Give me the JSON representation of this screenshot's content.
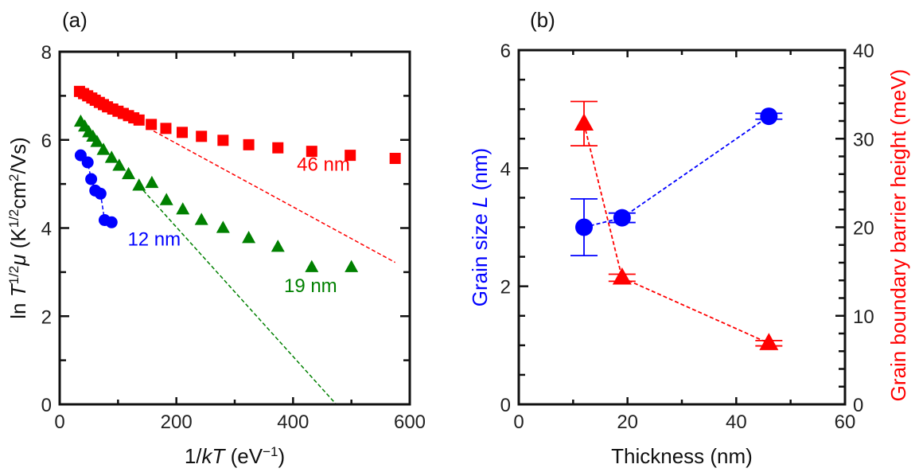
{
  "chart_data": [
    {
      "panel_label": "(a)",
      "type": "scatter",
      "xlabel_parts": [
        {
          "t": "1/"
        },
        {
          "t": "kT",
          "i": true
        },
        {
          "t": " (eV"
        },
        {
          "t": "−1",
          "sup": true
        },
        {
          "t": ")"
        }
      ],
      "ylabel_parts": [
        {
          "t": "ln "
        },
        {
          "t": "T",
          "i": true
        },
        {
          "t": "1/2",
          "sup": true
        },
        {
          "t": "μ",
          "i": true
        },
        {
          "t": " (K"
        },
        {
          "t": "1/2",
          "sup": true
        },
        {
          "t": "cm"
        },
        {
          "t": "2",
          "sup": true
        },
        {
          "t": "/Vs)"
        }
      ],
      "xlim": [
        0,
        600
      ],
      "ylim": [
        0,
        8
      ],
      "xticks": [
        0,
        200,
        400,
        600
      ],
      "yticks": [
        0,
        2,
        4,
        6,
        8
      ],
      "x_minor_step": 100,
      "y_minor_step": 1,
      "grid": false,
      "series": [
        {
          "label": "46 nm",
          "color": "#ff0000",
          "marker": "square",
          "x": [
            34,
            41,
            48,
            55,
            61,
            68,
            75,
            82,
            91,
            100,
            109,
            118,
            127,
            136,
            157,
            182,
            210,
            243,
            280,
            324,
            374,
            432,
            498,
            575
          ],
          "y": [
            7.1,
            7.05,
            7.0,
            6.95,
            6.9,
            6.85,
            6.8,
            6.75,
            6.7,
            6.65,
            6.6,
            6.55,
            6.5,
            6.45,
            6.35,
            6.26,
            6.17,
            6.08,
            5.99,
            5.89,
            5.82,
            5.74,
            5.65,
            5.58
          ],
          "fit": {
            "x": [
              161,
              575
            ],
            "y": [
              6.2,
              3.22
            ]
          },
          "label_at": [
            452,
            5.3
          ]
        },
        {
          "label": "19 nm",
          "color": "#008000",
          "marker": "triangle",
          "x": [
            36,
            43,
            50,
            57,
            64,
            75,
            89,
            102,
            118,
            136,
            158,
            183,
            211,
            243,
            280,
            324,
            374,
            432,
            500
          ],
          "y": [
            6.41,
            6.3,
            6.17,
            6.07,
            5.95,
            5.77,
            5.59,
            5.41,
            5.22,
            4.96,
            5.02,
            4.63,
            4.42,
            4.18,
            4.0,
            3.77,
            3.57,
            3.11,
            3.11
          ],
          "fit": {
            "x": [
              136,
              474
            ],
            "y": [
              4.96,
              0
            ]
          },
          "label_at": [
            430,
            2.55
          ]
        },
        {
          "label": "12 nm",
          "color": "#0000ff",
          "marker": "circle",
          "x": [
            36,
            48,
            54,
            61,
            70,
            77,
            89
          ],
          "y": [
            5.65,
            5.49,
            5.11,
            4.85,
            4.78,
            4.18,
            4.13
          ],
          "connect": true,
          "label_at": [
            162,
            3.6
          ]
        }
      ]
    },
    {
      "panel_label": "(b)",
      "type": "scatter",
      "xlabel": "Thickness (nm)",
      "ylabel_left_parts": [
        {
          "t": "Grain size "
        },
        {
          "t": "L",
          "i": true
        },
        {
          "t": " (nm)"
        }
      ],
      "ylabel_right": "Grain boundary barrier height (meV)",
      "xlim": [
        0,
        60
      ],
      "ylim_left": [
        0,
        6
      ],
      "ylim_right": [
        0,
        40
      ],
      "xticks": [
        0,
        20,
        40,
        60
      ],
      "yticks_left": [
        0,
        2,
        4,
        6
      ],
      "yticks_right": [
        0,
        10,
        20,
        30,
        40
      ],
      "x_minor_step": 10,
      "y_left_minor_step": 0.5,
      "y_right_minor_step": 2,
      "grid": false,
      "left_color": "#0000ff",
      "right_color": "#ff0000",
      "series": [
        {
          "axis": "left",
          "color": "#0000ff",
          "marker": "circle",
          "x": [
            12,
            19,
            46
          ],
          "y": [
            3.0,
            3.16,
            4.88
          ],
          "err": [
            0.48,
            0.08,
            0.05
          ]
        },
        {
          "axis": "right",
          "color": "#ff0000",
          "marker": "triangle",
          "x": [
            12,
            19,
            46
          ],
          "y": [
            31.7,
            14.3,
            6.9
          ],
          "err": [
            2.5,
            0.4,
            0.3
          ]
        }
      ]
    }
  ]
}
